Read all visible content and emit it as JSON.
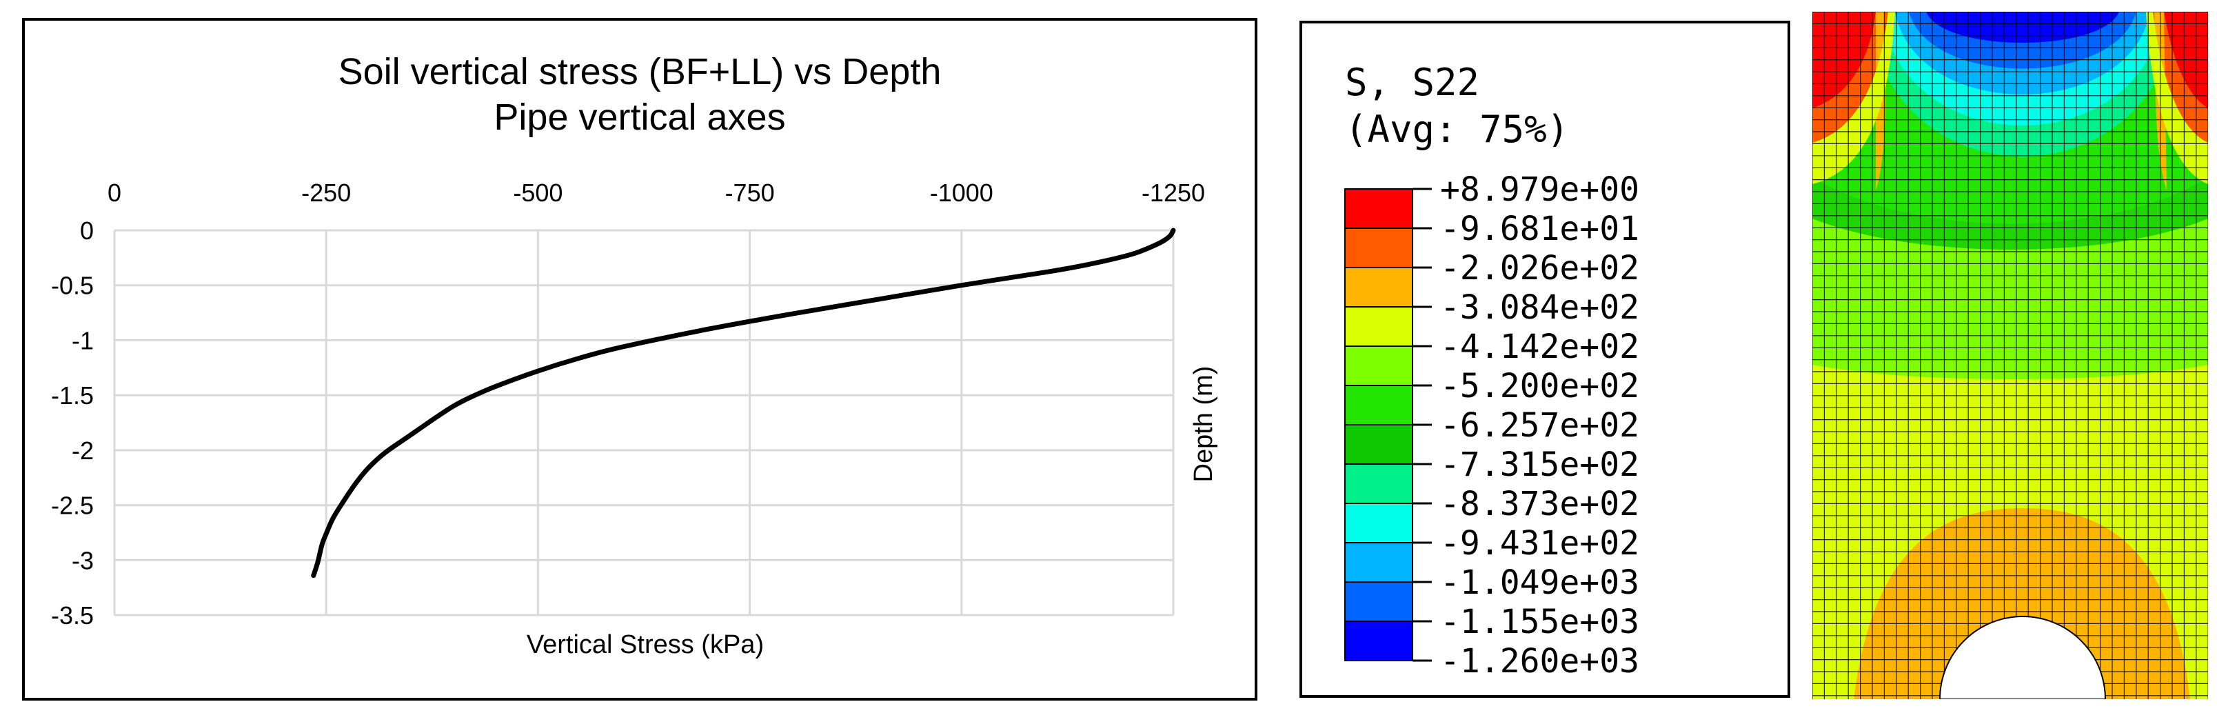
{
  "chart_data": {
    "type": "line",
    "title": "Soil vertical stress (BF+LL) vs Depth",
    "subtitle": "Pipe vertical axes",
    "xlabel": "Vertical Stress (kPa)",
    "ylabel": "Depth (m)",
    "xlim": [
      0,
      -1250
    ],
    "ylim": [
      -3.5,
      0
    ],
    "x_reversed": true,
    "x_axis_position": "top",
    "y_axis_position": "left",
    "ylabel_position": "right",
    "grid": true,
    "x_ticks": [
      "0",
      "-250",
      "-500",
      "-750",
      "-1000",
      "-1250"
    ],
    "x_tick_values": [
      0,
      -250,
      -500,
      -750,
      -1000,
      -1250
    ],
    "y_ticks": [
      "0",
      "-0.5",
      "-1",
      "-1.5",
      "-2",
      "-2.5",
      "-3",
      "-3.5"
    ],
    "y_tick_values": [
      0,
      -0.5,
      -1,
      -1.5,
      -2,
      -2.5,
      -3,
      -3.5
    ],
    "series": [
      {
        "name": "Soil vertical stress",
        "color": "#000000",
        "x": [
          -1250,
          -1245,
          -1230,
          -1200,
          -1150,
          -1100,
          -1000,
          -900,
          -800,
          -700,
          -600,
          -550,
          -500,
          -450,
          -420,
          -400,
          -380,
          -350,
          -320,
          -300,
          -285,
          -270,
          -258,
          -250,
          -245,
          -240,
          -235
        ],
        "y": [
          0.0,
          -0.06,
          -0.13,
          -0.22,
          -0.31,
          -0.38,
          -0.5,
          -0.63,
          -0.76,
          -0.9,
          -1.06,
          -1.16,
          -1.28,
          -1.42,
          -1.52,
          -1.6,
          -1.7,
          -1.86,
          -2.02,
          -2.16,
          -2.3,
          -2.47,
          -2.62,
          -2.76,
          -2.86,
          -3.02,
          -3.14
        ]
      }
    ]
  },
  "legend": {
    "title": "S, S22",
    "subtitle": "(Avg: 75%)",
    "colors": [
      "#ff0000",
      "#ff5a00",
      "#ffb400",
      "#d9ff00",
      "#7dff00",
      "#22e600",
      "#0fc800",
      "#00f08c",
      "#00ffe8",
      "#00b4ff",
      "#0064ff",
      "#0000ff"
    ],
    "labels": [
      "+8.979e+00",
      "-9.681e+01",
      "-2.026e+02",
      "-3.084e+02",
      "-4.142e+02",
      "-5.200e+02",
      "-6.257e+02",
      "-7.315e+02",
      "-8.373e+02",
      "-9.431e+02",
      "-1.049e+03",
      "-1.155e+03",
      "-1.260e+03"
    ]
  },
  "contour": {
    "background_color": "#1ed600",
    "mesh_color": "#000000"
  }
}
